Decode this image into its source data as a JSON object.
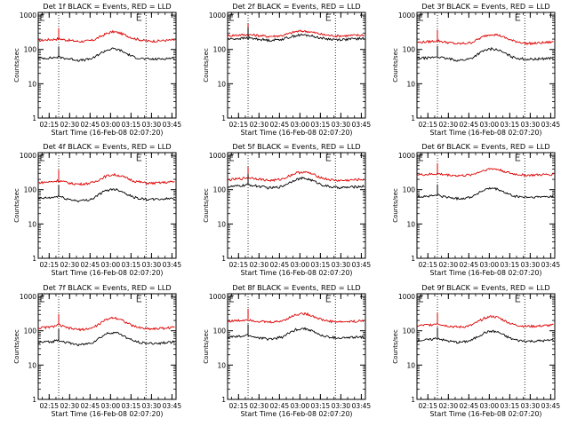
{
  "chart_data": [
    {
      "type": "line",
      "title": "Det 1f BLACK = Events, RED = LLD",
      "xlabel": "Start Time (16-Feb-08 02:07:20)",
      "ylabel": "Counts/sec",
      "x_ticks": [
        "02:15",
        "02:30",
        "02:45",
        "03:00",
        "03:15",
        "03:30",
        "03:45"
      ],
      "y_ticks": [
        "1",
        "10",
        "100",
        "1000"
      ],
      "ylim": [
        1,
        1200
      ],
      "y_scale": "log",
      "xlim": [
        "02:07",
        "03:48"
      ],
      "markers": [
        "02:22",
        "03:26"
      ],
      "grid": false,
      "x": [
        "02:07",
        "02:12",
        "02:17",
        "02:22",
        "02:27",
        "02:32",
        "02:37",
        "02:42",
        "02:47",
        "02:52",
        "02:57",
        "03:02",
        "03:07",
        "03:12",
        "03:17",
        "03:22",
        "03:27",
        "03:32",
        "03:37",
        "03:42",
        "03:47"
      ],
      "series": [
        {
          "name": "LLD",
          "color": "#dd0000",
          "values": [
            180,
            190,
            195,
            205,
            190,
            180,
            170,
            175,
            185,
            230,
            290,
            330,
            300,
            250,
            210,
            190,
            175,
            175,
            180,
            185,
            190
          ]
        },
        {
          "name": "Events",
          "color": "#000000",
          "values": [
            55,
            56,
            57,
            60,
            55,
            52,
            48,
            50,
            55,
            75,
            95,
            105,
            95,
            75,
            60,
            55,
            52,
            52,
            53,
            55,
            56
          ]
        }
      ]
    },
    {
      "type": "line",
      "title": "Det 2f BLACK = Events, RED = LLD",
      "xlabel": "Start Time (16-Feb-08 02:07:20)",
      "ylabel": "Counts/sec",
      "x_ticks": [
        "02:15",
        "02:30",
        "02:45",
        "03:00",
        "03:15",
        "03:30",
        "03:45"
      ],
      "y_ticks": [
        "1",
        "10",
        "100",
        "1000"
      ],
      "ylim": [
        1,
        1200
      ],
      "y_scale": "log",
      "xlim": [
        "02:07",
        "03:48"
      ],
      "markers": [
        "02:22",
        "03:26"
      ],
      "grid": false,
      "x": [
        "02:07",
        "02:12",
        "02:17",
        "02:22",
        "02:27",
        "02:32",
        "02:37",
        "02:42",
        "02:47",
        "02:52",
        "02:57",
        "03:02",
        "03:07",
        "03:12",
        "03:17",
        "03:22",
        "03:27",
        "03:32",
        "03:37",
        "03:42",
        "03:47"
      ],
      "series": [
        {
          "name": "LLD",
          "color": "#dd0000",
          "values": [
            250,
            260,
            265,
            270,
            260,
            250,
            240,
            245,
            255,
            290,
            330,
            345,
            330,
            300,
            270,
            255,
            250,
            250,
            255,
            260,
            265
          ]
        },
        {
          "name": "Events",
          "color": "#000000",
          "values": [
            200,
            205,
            210,
            215,
            205,
            195,
            185,
            190,
            200,
            225,
            255,
            265,
            255,
            230,
            210,
            200,
            195,
            195,
            200,
            205,
            208
          ]
        }
      ]
    },
    {
      "type": "line",
      "title": "Det 3f BLACK = Events, RED = LLD",
      "xlabel": "Start Time (16-Feb-08 02:07:20)",
      "ylabel": "Counts/sec",
      "x_ticks": [
        "02:15",
        "02:30",
        "02:45",
        "03:00",
        "03:15",
        "03:30",
        "03:45"
      ],
      "y_ticks": [
        "1",
        "10",
        "100",
        "1000"
      ],
      "ylim": [
        1,
        1200
      ],
      "y_scale": "log",
      "xlim": [
        "02:07",
        "03:48"
      ],
      "markers": [
        "02:22",
        "03:26"
      ],
      "grid": false,
      "x": [
        "02:07",
        "02:12",
        "02:17",
        "02:22",
        "02:27",
        "02:32",
        "02:37",
        "02:42",
        "02:47",
        "02:52",
        "02:57",
        "03:02",
        "03:07",
        "03:12",
        "03:17",
        "03:22",
        "03:27",
        "03:32",
        "03:37",
        "03:42",
        "03:47"
      ],
      "series": [
        {
          "name": "LLD",
          "color": "#dd0000",
          "values": [
            160,
            165,
            170,
            180,
            165,
            155,
            145,
            150,
            160,
            200,
            250,
            280,
            260,
            215,
            180,
            165,
            150,
            150,
            155,
            160,
            165
          ]
        },
        {
          "name": "Events",
          "color": "#000000",
          "values": [
            55,
            56,
            57,
            62,
            55,
            52,
            48,
            50,
            55,
            75,
            95,
            105,
            95,
            75,
            60,
            55,
            52,
            52,
            53,
            55,
            56
          ]
        }
      ]
    },
    {
      "type": "line",
      "title": "Det 4f BLACK = Events, RED = LLD",
      "xlabel": "Start Time (16-Feb-08 02:07:20)",
      "ylabel": "Counts/sec",
      "x_ticks": [
        "02:15",
        "02:30",
        "02:45",
        "03:00",
        "03:15",
        "03:30",
        "03:45"
      ],
      "y_ticks": [
        "1",
        "10",
        "100",
        "1000"
      ],
      "ylim": [
        1,
        1200
      ],
      "y_scale": "log",
      "xlim": [
        "02:07",
        "03:48"
      ],
      "markers": [
        "02:22",
        "03:26"
      ],
      "grid": false,
      "x": [
        "02:07",
        "02:12",
        "02:17",
        "02:22",
        "02:27",
        "02:32",
        "02:37",
        "02:42",
        "02:47",
        "02:52",
        "02:57",
        "03:02",
        "03:07",
        "03:12",
        "03:17",
        "03:22",
        "03:27",
        "03:32",
        "03:37",
        "03:42",
        "03:47"
      ],
      "series": [
        {
          "name": "LLD",
          "color": "#dd0000",
          "values": [
            160,
            165,
            170,
            185,
            165,
            150,
            145,
            150,
            160,
            200,
            250,
            275,
            255,
            215,
            180,
            165,
            155,
            155,
            160,
            165,
            170
          ]
        },
        {
          "name": "Events",
          "color": "#000000",
          "values": [
            55,
            57,
            58,
            65,
            55,
            50,
            47,
            49,
            55,
            75,
            95,
            105,
            95,
            75,
            60,
            55,
            52,
            52,
            53,
            55,
            56
          ]
        }
      ]
    },
    {
      "type": "line",
      "title": "Det 5f BLACK = Events, RED = LLD",
      "xlabel": "Start Time (16-Feb-08 02:07:20)",
      "ylabel": "Counts/sec",
      "x_ticks": [
        "02:15",
        "02:30",
        "02:45",
        "03:00",
        "03:15",
        "03:30",
        "03:45"
      ],
      "y_ticks": [
        "1",
        "10",
        "100",
        "1000"
      ],
      "ylim": [
        1,
        1200
      ],
      "y_scale": "log",
      "xlim": [
        "02:07",
        "03:48"
      ],
      "markers": [
        "02:22",
        "03:26"
      ],
      "grid": false,
      "x": [
        "02:07",
        "02:12",
        "02:17",
        "02:22",
        "02:27",
        "02:32",
        "02:37",
        "02:42",
        "02:47",
        "02:52",
        "02:57",
        "03:02",
        "03:07",
        "03:12",
        "03:17",
        "03:22",
        "03:27",
        "03:32",
        "03:37",
        "03:42",
        "03:47"
      ],
      "series": [
        {
          "name": "LLD",
          "color": "#dd0000",
          "values": [
            190,
            200,
            210,
            225,
            215,
            200,
            185,
            190,
            205,
            250,
            305,
            330,
            305,
            255,
            215,
            195,
            185,
            185,
            190,
            195,
            200
          ]
        },
        {
          "name": "Events",
          "color": "#000000",
          "values": [
            120,
            125,
            130,
            140,
            130,
            122,
            112,
            115,
            125,
            160,
            200,
            215,
            200,
            165,
            135,
            122,
            115,
            115,
            118,
            122,
            126
          ]
        }
      ]
    },
    {
      "type": "line",
      "title": "Det 6f BLACK = Events, RED = LLD",
      "xlabel": "Start Time (16-Feb-08 02:07:20)",
      "ylabel": "Counts/sec",
      "x_ticks": [
        "02:15",
        "02:30",
        "02:45",
        "03:00",
        "03:15",
        "03:30",
        "03:45"
      ],
      "y_ticks": [
        "1",
        "10",
        "100",
        "1000"
      ],
      "ylim": [
        1,
        1200
      ],
      "y_scale": "log",
      "xlim": [
        "02:07",
        "03:48"
      ],
      "markers": [
        "02:22",
        "03:26"
      ],
      "grid": false,
      "x": [
        "02:07",
        "02:12",
        "02:17",
        "02:22",
        "02:27",
        "02:32",
        "02:37",
        "02:42",
        "02:47",
        "02:52",
        "02:57",
        "03:02",
        "03:07",
        "03:12",
        "03:17",
        "03:22",
        "03:27",
        "03:32",
        "03:37",
        "03:42",
        "03:47"
      ],
      "series": [
        {
          "name": "LLD",
          "color": "#dd0000",
          "values": [
            270,
            275,
            280,
            290,
            275,
            265,
            255,
            260,
            275,
            320,
            380,
            410,
            385,
            330,
            290,
            275,
            265,
            265,
            270,
            275,
            280
          ]
        },
        {
          "name": "Events",
          "color": "#000000",
          "values": [
            62,
            64,
            65,
            70,
            62,
            58,
            55,
            57,
            62,
            80,
            100,
            110,
            100,
            80,
            66,
            62,
            60,
            60,
            61,
            63,
            64
          ]
        }
      ]
    },
    {
      "type": "line",
      "title": "Det 7f BLACK = Events, RED = LLD",
      "xlabel": "Start Time (16-Feb-08 02:07:20)",
      "ylabel": "Counts/sec",
      "x_ticks": [
        "02:15",
        "02:30",
        "02:45",
        "03:00",
        "03:15",
        "03:30",
        "03:45"
      ],
      "y_ticks": [
        "1",
        "10",
        "100",
        "1000"
      ],
      "ylim": [
        1,
        1200
      ],
      "y_scale": "log",
      "xlim": [
        "02:07",
        "03:48"
      ],
      "markers": [
        "02:22",
        "03:26"
      ],
      "grid": false,
      "x": [
        "02:07",
        "02:12",
        "02:17",
        "02:22",
        "02:27",
        "02:32",
        "02:37",
        "02:42",
        "02:47",
        "02:52",
        "02:57",
        "03:02",
        "03:07",
        "03:12",
        "03:17",
        "03:22",
        "03:27",
        "03:32",
        "03:37",
        "03:42",
        "03:47"
      ],
      "series": [
        {
          "name": "LLD",
          "color": "#dd0000",
          "values": [
            120,
            125,
            130,
            150,
            125,
            115,
            108,
            112,
            122,
            160,
            215,
            245,
            220,
            170,
            135,
            122,
            115,
            115,
            118,
            122,
            126
          ]
        },
        {
          "name": "Events",
          "color": "#000000",
          "values": [
            45,
            47,
            48,
            55,
            46,
            42,
            39,
            41,
            46,
            62,
            82,
            90,
            82,
            62,
            50,
            46,
            43,
            43,
            44,
            46,
            47
          ]
        }
      ]
    },
    {
      "type": "line",
      "title": "Det 8f BLACK = Events, RED = LLD",
      "xlabel": "Start Time (16-Feb-08 02:07:20)",
      "ylabel": "Counts/sec",
      "x_ticks": [
        "02:15",
        "02:30",
        "02:45",
        "03:00",
        "03:15",
        "03:30",
        "03:45"
      ],
      "y_ticks": [
        "1",
        "10",
        "100",
        "1000"
      ],
      "ylim": [
        1,
        1200
      ],
      "y_scale": "log",
      "xlim": [
        "02:07",
        "03:48"
      ],
      "markers": [
        "02:22",
        "03:26"
      ],
      "grid": false,
      "x": [
        "02:07",
        "02:12",
        "02:17",
        "02:22",
        "02:27",
        "02:32",
        "02:37",
        "02:42",
        "02:47",
        "02:52",
        "02:57",
        "03:02",
        "03:07",
        "03:12",
        "03:17",
        "03:22",
        "03:27",
        "03:32",
        "03:37",
        "03:42",
        "03:47"
      ],
      "series": [
        {
          "name": "LLD",
          "color": "#dd0000",
          "values": [
            190,
            195,
            200,
            215,
            195,
            185,
            178,
            182,
            195,
            240,
            295,
            320,
            295,
            245,
            205,
            190,
            182,
            182,
            186,
            190,
            195
          ]
        },
        {
          "name": "Events",
          "color": "#000000",
          "values": [
            65,
            67,
            68,
            75,
            65,
            61,
            57,
            60,
            66,
            85,
            108,
            118,
            108,
            85,
            70,
            65,
            62,
            62,
            63,
            65,
            67
          ]
        }
      ]
    },
    {
      "type": "line",
      "title": "Det 9f BLACK = Events, RED = LLD",
      "xlabel": "Start Time (16-Feb-08 02:07:20)",
      "ylabel": "Counts/sec",
      "x_ticks": [
        "02:15",
        "02:30",
        "02:45",
        "03:00",
        "03:15",
        "03:30",
        "03:45"
      ],
      "y_ticks": [
        "1",
        "10",
        "100",
        "1000"
      ],
      "ylim": [
        1,
        1200
      ],
      "y_scale": "log",
      "xlim": [
        "02:07",
        "03:48"
      ],
      "markers": [
        "02:22",
        "03:26"
      ],
      "grid": false,
      "x": [
        "02:07",
        "02:12",
        "02:17",
        "02:22",
        "02:27",
        "02:32",
        "02:37",
        "02:42",
        "02:47",
        "02:52",
        "02:57",
        "03:02",
        "03:07",
        "03:12",
        "03:17",
        "03:22",
        "03:27",
        "03:32",
        "03:37",
        "03:42",
        "03:47"
      ],
      "series": [
        {
          "name": "LLD",
          "color": "#dd0000",
          "values": [
            140,
            145,
            150,
            165,
            145,
            135,
            128,
            132,
            145,
            185,
            240,
            265,
            240,
            190,
            155,
            142,
            135,
            135,
            138,
            142,
            146
          ]
        },
        {
          "name": "Events",
          "color": "#000000",
          "values": [
            52,
            54,
            55,
            62,
            53,
            49,
            46,
            48,
            53,
            70,
            90,
            98,
            90,
            70,
            57,
            52,
            50,
            50,
            51,
            52,
            54
          ]
        }
      ]
    }
  ]
}
